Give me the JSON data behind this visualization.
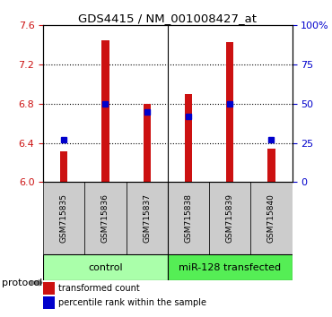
{
  "title": "GDS4415 / NM_001008427_at",
  "samples": [
    "GSM715835",
    "GSM715836",
    "GSM715837",
    "GSM715838",
    "GSM715839",
    "GSM715840"
  ],
  "transformed_counts": [
    6.31,
    7.45,
    6.8,
    6.9,
    7.43,
    6.34
  ],
  "percentile_ranks": [
    27,
    50,
    45,
    42,
    50,
    27
  ],
  "ylim_left": [
    6.0,
    7.6
  ],
  "ylim_right": [
    0,
    100
  ],
  "yticks_left": [
    6.0,
    6.4,
    6.8,
    7.2,
    7.6
  ],
  "yticks_right": [
    0,
    25,
    50,
    75,
    100
  ],
  "ytick_labels_right": [
    "0",
    "25",
    "50",
    "75",
    "100%"
  ],
  "bar_color": "#cc1111",
  "dot_color": "#0000cc",
  "bar_bottom": 6.0,
  "groups": [
    {
      "label": "control",
      "indices": [
        0,
        1,
        2
      ],
      "color": "#aaffaa"
    },
    {
      "label": "miR-128 transfected",
      "indices": [
        3,
        4,
        5
      ],
      "color": "#55ee55"
    }
  ],
  "protocol_label": "protocol",
  "legend_bar_label": "transformed count",
  "legend_dot_label": "percentile rank within the sample",
  "sample_box_color": "#cccccc",
  "left_tick_color": "#cc1111",
  "right_tick_color": "#0000cc",
  "bar_width": 0.18,
  "grid_yticks": [
    6.4,
    6.8,
    7.2
  ]
}
